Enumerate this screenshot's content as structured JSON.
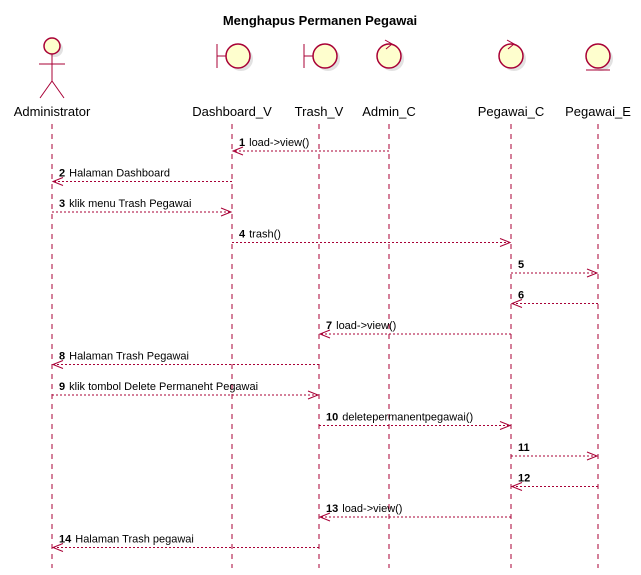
{
  "title": "Menghapus Permanen Pegawai",
  "colors": {
    "line": "#A80036",
    "fill": "#FEFECE",
    "text": "#000000"
  },
  "participants": [
    {
      "id": "administrator",
      "name": "Administrator",
      "kind": "actor-icon"
    },
    {
      "id": "dashboard_v",
      "name": "Dashboard_V",
      "kind": "boundary-icon"
    },
    {
      "id": "trash_v",
      "name": "Trash_V",
      "kind": "boundary-icon"
    },
    {
      "id": "admin_c",
      "name": "Admin_C",
      "kind": "control-icon"
    },
    {
      "id": "pegawai_c",
      "name": "Pegawai_C",
      "kind": "control-icon"
    },
    {
      "id": "pegawai_e",
      "name": "Pegawai_E",
      "kind": "entity-icon"
    }
  ],
  "messages": [
    {
      "num": "1",
      "label": "load->view()",
      "from": "admin_c",
      "to": "dashboard_v"
    },
    {
      "num": "2",
      "label": "Halaman Dashboard",
      "from": "dashboard_v",
      "to": "administrator"
    },
    {
      "num": "3",
      "label": "klik menu Trash Pegawai",
      "from": "administrator",
      "to": "dashboard_v"
    },
    {
      "num": "4",
      "label": "trash()",
      "from": "dashboard_v",
      "to": "pegawai_c"
    },
    {
      "num": "5",
      "label": "",
      "from": "pegawai_c",
      "to": "pegawai_e"
    },
    {
      "num": "6",
      "label": "",
      "from": "pegawai_e",
      "to": "pegawai_c"
    },
    {
      "num": "7",
      "label": "load->view()",
      "from": "pegawai_c",
      "to": "trash_v"
    },
    {
      "num": "8",
      "label": "Halaman Trash Pegawai",
      "from": "trash_v",
      "to": "administrator"
    },
    {
      "num": "9",
      "label": "klik tombol Delete Permaneht Pegawai",
      "from": "administrator",
      "to": "trash_v"
    },
    {
      "num": "10",
      "label": "deletepermanentpegawai()",
      "from": "trash_v",
      "to": "pegawai_c"
    },
    {
      "num": "11",
      "label": "",
      "from": "pegawai_c",
      "to": "pegawai_e"
    },
    {
      "num": "12",
      "label": "",
      "from": "pegawai_e",
      "to": "pegawai_c"
    },
    {
      "num": "13",
      "label": "load->view()",
      "from": "pegawai_c",
      "to": "trash_v"
    },
    {
      "num": "14",
      "label": "Halaman Trash pegawai",
      "from": "trash_v",
      "to": "administrator"
    }
  ]
}
